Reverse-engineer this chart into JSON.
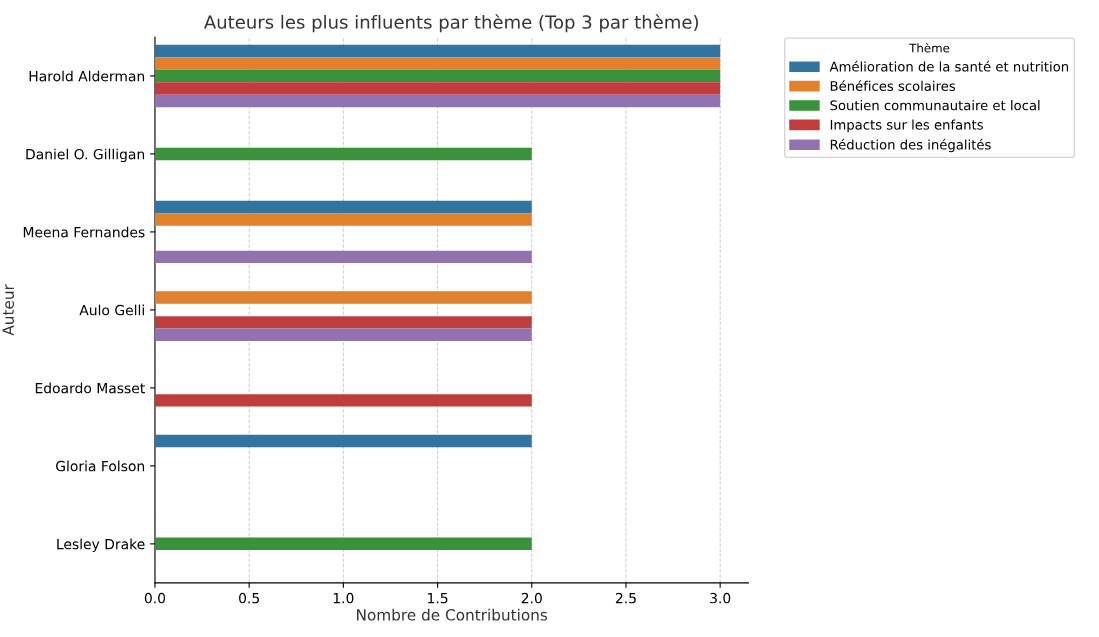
{
  "chart_data": {
    "type": "bar",
    "orientation": "horizontal",
    "title": "Auteurs les plus influents par thème (Top 3 par thème)",
    "xlabel": "Nombre de Contributions",
    "ylabel": "Auteur",
    "legend_title": "Thème",
    "categories": [
      "Harold Alderman",
      "Daniel O. Gilligan",
      "Meena Fernandes",
      "Aulo Gelli",
      "Edoardo Masset",
      "Gloria Folson",
      "Lesley Drake"
    ],
    "series": [
      {
        "name": "Amélioration de la santé et nutrition",
        "color": "#3274a1",
        "values": [
          3,
          null,
          2,
          null,
          null,
          2,
          null
        ]
      },
      {
        "name": "Bénéfices scolaires",
        "color": "#e1812c",
        "values": [
          3,
          null,
          2,
          2,
          null,
          null,
          null
        ]
      },
      {
        "name": "Soutien communautaire et local",
        "color": "#3a923a",
        "values": [
          3,
          2,
          null,
          null,
          null,
          null,
          2
        ]
      },
      {
        "name": "Impacts sur les enfants",
        "color": "#c03d3e",
        "values": [
          3,
          null,
          null,
          2,
          2,
          null,
          null
        ]
      },
      {
        "name": "Réduction des inégalités",
        "color": "#9372b2",
        "values": [
          3,
          null,
          2,
          2,
          null,
          null,
          null
        ]
      }
    ],
    "xlim": [
      0,
      3.15
    ],
    "xticks": [
      {
        "value": 0,
        "label": "0.0"
      },
      {
        "value": 0.5,
        "label": "0.5"
      },
      {
        "value": 1,
        "label": "1.0"
      },
      {
        "value": 1.5,
        "label": "1.5"
      },
      {
        "value": 2,
        "label": "2.0"
      },
      {
        "value": 2.5,
        "label": "2.5"
      },
      {
        "value": 3,
        "label": "3.0"
      }
    ],
    "grid": "x",
    "legend": "top right"
  }
}
